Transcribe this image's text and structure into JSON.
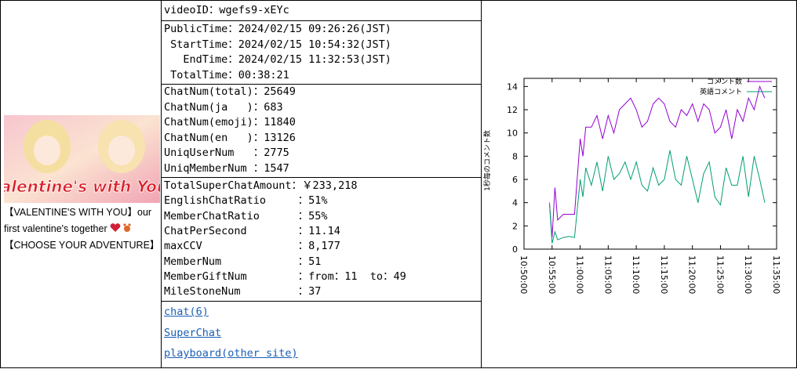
{
  "video": {
    "thumbnail_text": "Valentine's with You!",
    "title_lines": [
      "【VALENTINE'S WITH YOU】our first valentine's together",
      "【CHOOSE YOUR ADVENTURE】"
    ],
    "video_id": "videoID：wgefs9-xEYc",
    "times": [
      "PublicTime：2024/02/15 09:26:26(JST)",
      " StartTime：2024/02/15 10:54:32(JST)",
      "   EndTime：2024/02/15 11:32:53(JST)",
      " TotalTime：00:38:21"
    ],
    "chat_counts": [
      "ChatNum(total)：25649",
      "ChatNum(ja   )：683",
      "ChatNum(emoji)：11840",
      "ChatNum(en   )：13126",
      "UniqUserNum   ：2775",
      "UniqMemberNum ：1547"
    ],
    "metrics": [
      "TotalSuperChatAmount：￥233,218",
      "EnglishChatRatio     ：51%",
      "MemberChatRatio      ：55%",
      "ChatPerSecond        ：11.14",
      "maxCCV               ：8,177",
      "MemberNum            ：51",
      "MemberGiftNum        ：from：11  to：49",
      "MileStoneNum         ：37"
    ],
    "links": [
      "chat(6)",
      "SuperChat",
      "playboard(other site)"
    ]
  },
  "chart_data": {
    "type": "line",
    "ylabel": "1秒毎のコメント数",
    "x": [
      "10:54:32",
      "10:55:00",
      "10:55:30",
      "10:56:00",
      "10:57:00",
      "10:58:00",
      "10:59:00",
      "11:00:00",
      "11:00:30",
      "11:01:00",
      "11:02:00",
      "11:03:00",
      "11:04:00",
      "11:05:00",
      "11:06:00",
      "11:07:00",
      "11:08:00",
      "11:09:00",
      "11:10:00",
      "11:11:00",
      "11:12:00",
      "11:13:00",
      "11:14:00",
      "11:15:00",
      "11:16:00",
      "11:17:00",
      "11:18:00",
      "11:19:00",
      "11:20:00",
      "11:21:00",
      "11:22:00",
      "11:23:00",
      "11:24:00",
      "11:25:00",
      "11:26:00",
      "11:27:00",
      "11:28:00",
      "11:29:00",
      "11:30:00",
      "11:31:00",
      "11:32:00",
      "11:32:53"
    ],
    "series": [
      {
        "name": "コメント数",
        "color": "#9400d3",
        "values": [
          4,
          1,
          5.3,
          2.5,
          3,
          3,
          3,
          9.5,
          8,
          10.5,
          10.5,
          11.5,
          9.5,
          11.5,
          10,
          12,
          12.5,
          13,
          12,
          10.5,
          11,
          12.5,
          13,
          12.5,
          11,
          10.5,
          12,
          11.5,
          12.5,
          11,
          12.5,
          12,
          10,
          10.5,
          12,
          9.5,
          12,
          11,
          13,
          12,
          14,
          13
        ]
      },
      {
        "name": "英語コメント",
        "color": "#009e73",
        "values": [
          4,
          0.5,
          1.5,
          0.8,
          1,
          1.1,
          1,
          6,
          4.5,
          7,
          5.5,
          7.5,
          5,
          8,
          6,
          6.5,
          7.5,
          6,
          7.5,
          5.5,
          5,
          7,
          5.5,
          6,
          8.5,
          6,
          5.5,
          8,
          6,
          4,
          6.5,
          7.5,
          4.5,
          3.8,
          7,
          5.5,
          5.5,
          8,
          4.5,
          8,
          6,
          4
        ]
      }
    ],
    "xlim": [
      "10:50:00",
      "11:35:00"
    ],
    "xticks": [
      "10:50:00",
      "10:55:00",
      "11:00:00",
      "11:05:00",
      "11:10:00",
      "11:15:00",
      "11:20:00",
      "11:25:00",
      "11:30:00",
      "11:35:00"
    ],
    "ylim": [
      0,
      14.7
    ],
    "yticks": [
      0,
      2,
      4,
      6,
      8,
      10,
      12,
      14
    ],
    "legend": "top-right"
  }
}
